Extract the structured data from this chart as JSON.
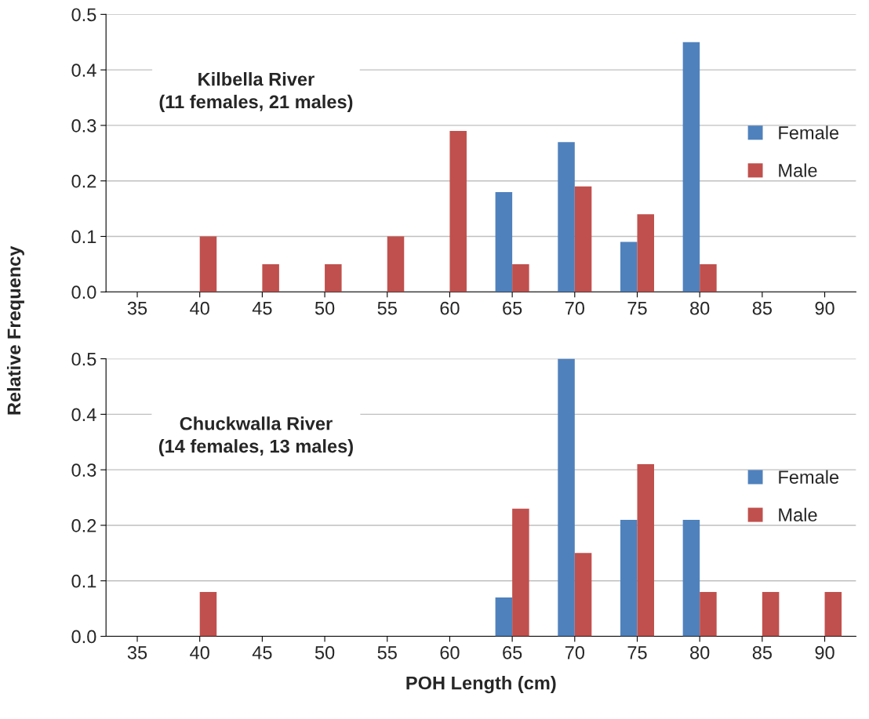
{
  "chart_data": [
    {
      "type": "bar",
      "categories": [
        "35",
        "40",
        "45",
        "50",
        "55",
        "60",
        "65",
        "70",
        "75",
        "80",
        "85",
        "90"
      ],
      "series": [
        {
          "name": "Female",
          "color": "#4f81bd",
          "values": [
            null,
            null,
            null,
            null,
            null,
            null,
            0.18,
            0.27,
            0.09,
            0.45,
            null,
            null
          ]
        },
        {
          "name": "Male",
          "color": "#c0504d",
          "values": [
            null,
            0.1,
            0.05,
            0.05,
            0.1,
            0.29,
            0.05,
            0.19,
            0.14,
            0.05,
            null,
            null
          ]
        }
      ],
      "ylim": [
        0,
        0.5
      ],
      "yticks": [
        {
          "value": 0,
          "label": "0.0"
        },
        0.1,
        0.2,
        0.3,
        0.4,
        0.5
      ],
      "ylabel": "Relative Frequency",
      "annotations": [
        "Kilbella River\n(11 females, 21 males)"
      ],
      "grid": "y",
      "legend": "right"
    },
    {
      "type": "bar",
      "categories": [
        "35",
        "40",
        "45",
        "50",
        "55",
        "60",
        "65",
        "70",
        "75",
        "80",
        "85",
        "90"
      ],
      "series": [
        {
          "name": "Female",
          "color": "#4f81bd",
          "values": [
            null,
            null,
            null,
            null,
            null,
            null,
            0.07,
            0.5,
            0.21,
            0.21,
            null,
            null
          ]
        },
        {
          "name": "Male",
          "color": "#c0504d",
          "values": [
            null,
            0.08,
            null,
            null,
            null,
            null,
            0.23,
            0.15,
            0.31,
            0.08,
            0.08,
            0.08
          ]
        }
      ],
      "ylim": [
        0,
        0.5
      ],
      "yticks": [
        {
          "value": 0,
          "label": "0.0"
        },
        0.1,
        0.2,
        0.3,
        0.4,
        0.5
      ],
      "xlabel": "POH Length (cm)",
      "annotations": [
        "Chuckwalla River\n(14 females, 13 males)"
      ],
      "grid": "y",
      "legend": "right"
    }
  ]
}
